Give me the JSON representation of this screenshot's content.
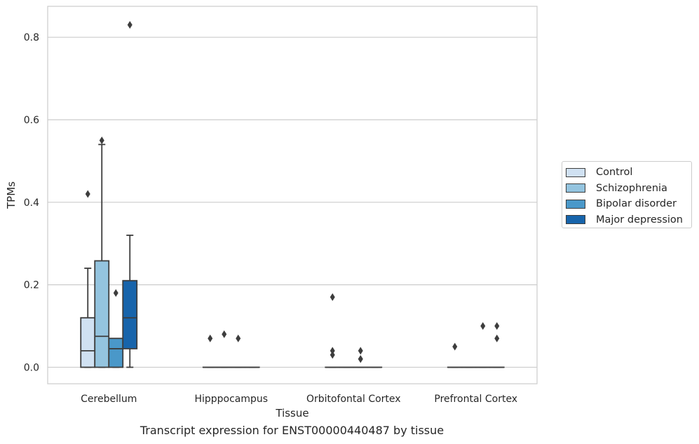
{
  "chart_data": {
    "type": "box",
    "title": "Transcript expression for ENST00000440487 by tissue",
    "xlabel": "Tissue",
    "ylabel": "TPMs",
    "ylim": [
      -0.04,
      0.875
    ],
    "yticks": [
      0.0,
      0.2,
      0.4,
      0.6,
      0.8
    ],
    "ytick_labels": [
      "0.0",
      "0.2",
      "0.4",
      "0.6",
      "0.8"
    ],
    "grid": true,
    "legend_position": "right",
    "categories": [
      "Cerebellum",
      "Hipppocampus",
      "Orbitofontal Cortex",
      "Prefrontal Cortex"
    ],
    "series": [
      {
        "name": "Control",
        "color": "#d0e1f2",
        "boxes": [
          {
            "q1": 0.0,
            "median": 0.04,
            "q3": 0.12,
            "whisker_low": 0.0,
            "whisker_high": 0.24,
            "outliers": [
              0.42
            ]
          },
          {
            "q1": 0.0,
            "median": 0.0,
            "q3": 0.0,
            "whisker_low": 0.0,
            "whisker_high": 0.0,
            "outliers": [
              0.07
            ]
          },
          {
            "q1": 0.0,
            "median": 0.0,
            "q3": 0.0,
            "whisker_low": 0.0,
            "whisker_high": 0.0,
            "outliers": [
              0.17,
              0.04,
              0.03
            ]
          },
          {
            "q1": 0.0,
            "median": 0.0,
            "q3": 0.0,
            "whisker_low": 0.0,
            "whisker_high": 0.0,
            "outliers": [
              0.05
            ]
          }
        ]
      },
      {
        "name": "Schizophrenia",
        "color": "#94c4df",
        "boxes": [
          {
            "q1": 0.0,
            "median": 0.075,
            "q3": 0.258,
            "whisker_low": 0.0,
            "whisker_high": 0.54,
            "outliers": [
              0.55
            ]
          },
          {
            "q1": 0.0,
            "median": 0.0,
            "q3": 0.0,
            "whisker_low": 0.0,
            "whisker_high": 0.0,
            "outliers": [
              0.08
            ]
          },
          {
            "q1": 0.0,
            "median": 0.0,
            "q3": 0.0,
            "whisker_low": 0.0,
            "whisker_high": 0.0,
            "outliers": []
          },
          {
            "q1": 0.0,
            "median": 0.0,
            "q3": 0.0,
            "whisker_low": 0.0,
            "whisker_high": 0.0,
            "outliers": []
          }
        ]
      },
      {
        "name": "Bipolar disorder",
        "color": "#4a98c9",
        "boxes": [
          {
            "q1": 0.0,
            "median": 0.045,
            "q3": 0.07,
            "whisker_low": 0.0,
            "whisker_high": 0.07,
            "outliers": [
              0.18
            ]
          },
          {
            "q1": 0.0,
            "median": 0.0,
            "q3": 0.0,
            "whisker_low": 0.0,
            "whisker_high": 0.0,
            "outliers": [
              0.07
            ]
          },
          {
            "q1": 0.0,
            "median": 0.0,
            "q3": 0.0,
            "whisker_low": 0.0,
            "whisker_high": 0.0,
            "outliers": [
              0.04,
              0.02,
              0.02
            ]
          },
          {
            "q1": 0.0,
            "median": 0.0,
            "q3": 0.0,
            "whisker_low": 0.0,
            "whisker_high": 0.0,
            "outliers": [
              0.1
            ]
          }
        ]
      },
      {
        "name": "Major depression",
        "color": "#1764ab",
        "boxes": [
          {
            "q1": 0.045,
            "median": 0.12,
            "q3": 0.21,
            "whisker_low": 0.0,
            "whisker_high": 0.32,
            "outliers": [
              0.83
            ]
          },
          {
            "q1": 0.0,
            "median": 0.0,
            "q3": 0.0,
            "whisker_low": 0.0,
            "whisker_high": 0.0,
            "outliers": []
          },
          {
            "q1": 0.0,
            "median": 0.0,
            "q3": 0.0,
            "whisker_low": 0.0,
            "whisker_high": 0.0,
            "outliers": []
          },
          {
            "q1": 0.0,
            "median": 0.0,
            "q3": 0.0,
            "whisker_low": 0.0,
            "whisker_high": 0.0,
            "outliers": [
              0.1,
              0.07
            ]
          }
        ]
      }
    ]
  }
}
